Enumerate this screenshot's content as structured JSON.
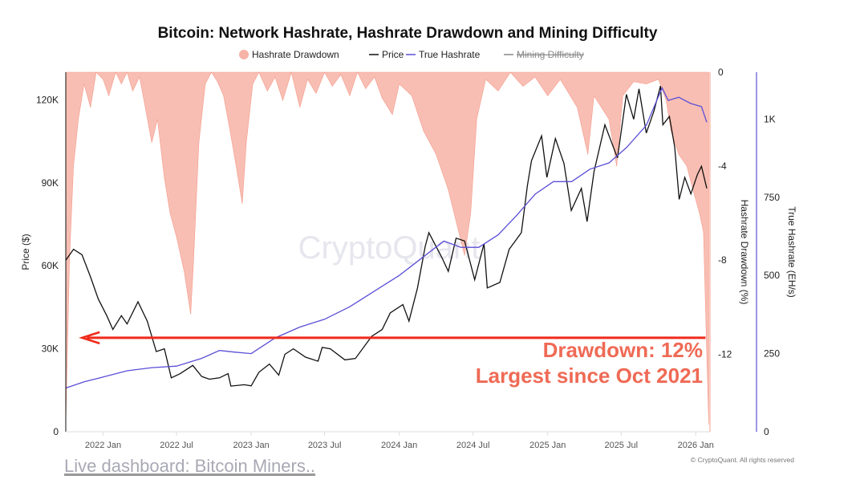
{
  "chart_data": {
    "type": "line",
    "title": "Bitcoin: Network Hashrate, Hashrate Drawdown and Mining Difficulty",
    "legend": {
      "placement": "top",
      "entries": [
        {
          "name": "Hashrate Drawdown",
          "color": "#f7b3a6",
          "marker": "circle"
        },
        {
          "name": "Price",
          "color": "#111111",
          "marker": "line"
        },
        {
          "name": "True Hashrate",
          "color": "#5b4fd6",
          "marker": "line"
        },
        {
          "name": "Mining Difficulty",
          "color": "#888888",
          "marker": "line",
          "hidden": true
        }
      ]
    },
    "x_range": [
      "2021-10-01",
      "2026-02-05"
    ],
    "x_ticks": [
      "2022 Jan",
      "2022 Jul",
      "2023 Jan",
      "2023 Jul",
      "2024 Jan",
      "2024 Jul",
      "2025 Jan",
      "2025 Jul",
      "2026 Jan"
    ],
    "x_tick_dates": [
      "2022-01-01",
      "2022-07-01",
      "2023-01-01",
      "2023-07-01",
      "2024-01-01",
      "2024-07-01",
      "2025-01-01",
      "2025-07-01",
      "2026-01-01"
    ],
    "axes": {
      "price": {
        "label": "Price ($)",
        "range": [
          0,
          130000
        ],
        "ticks": [
          0,
          30000,
          60000,
          90000,
          120000
        ],
        "tick_labels": [
          "0",
          "30K",
          "60K",
          "90K",
          "120K"
        ]
      },
      "drawdown": {
        "label": "Hashrate Drawdown (%)",
        "range": [
          -15.3,
          0
        ],
        "ticks": [
          0,
          -4,
          -8,
          -12
        ],
        "tick_labels": [
          "0",
          "-4",
          "-8",
          "-12"
        ]
      },
      "hashrate": {
        "label": "True Hashrate (EH/s)",
        "range": [
          0,
          1150
        ],
        "ticks": [
          0,
          250,
          500,
          750,
          1000
        ],
        "tick_labels": [
          "0",
          "250",
          "500",
          "750",
          "1K"
        ]
      }
    },
    "grid": false,
    "series": [
      {
        "name": "Price",
        "axis": "price",
        "color": "#111111",
        "points": [
          [
            "2021-10-01",
            62000
          ],
          [
            "2021-10-20",
            66000
          ],
          [
            "2021-11-10",
            64000
          ],
          [
            "2021-12-01",
            56000
          ],
          [
            "2021-12-20",
            48000
          ],
          [
            "2022-01-10",
            42000
          ],
          [
            "2022-01-25",
            37000
          ],
          [
            "2022-02-15",
            42000
          ],
          [
            "2022-03-01",
            39000
          ],
          [
            "2022-03-28",
            47000
          ],
          [
            "2022-04-20",
            40000
          ],
          [
            "2022-05-12",
            29000
          ],
          [
            "2022-06-01",
            30000
          ],
          [
            "2022-06-18",
            19500
          ],
          [
            "2022-07-10",
            21000
          ],
          [
            "2022-08-10",
            24000
          ],
          [
            "2022-09-01",
            20000
          ],
          [
            "2022-09-20",
            19000
          ],
          [
            "2022-10-15",
            19500
          ],
          [
            "2022-11-05",
            21000
          ],
          [
            "2022-11-12",
            16500
          ],
          [
            "2022-12-15",
            17000
          ],
          [
            "2023-01-01",
            16600
          ],
          [
            "2023-01-20",
            21500
          ],
          [
            "2023-02-15",
            24500
          ],
          [
            "2023-03-10",
            20500
          ],
          [
            "2023-03-25",
            28000
          ],
          [
            "2023-04-15",
            30000
          ],
          [
            "2023-05-15",
            27000
          ],
          [
            "2023-06-15",
            25500
          ],
          [
            "2023-06-25",
            30500
          ],
          [
            "2023-07-15",
            30000
          ],
          [
            "2023-08-20",
            26000
          ],
          [
            "2023-09-15",
            26500
          ],
          [
            "2023-10-25",
            34500
          ],
          [
            "2023-11-20",
            37000
          ],
          [
            "2023-12-10",
            43000
          ],
          [
            "2024-01-10",
            46000
          ],
          [
            "2024-01-25",
            40000
          ],
          [
            "2024-02-15",
            52000
          ],
          [
            "2024-03-05",
            67000
          ],
          [
            "2024-03-14",
            72000
          ],
          [
            "2024-04-15",
            63000
          ],
          [
            "2024-05-01",
            58000
          ],
          [
            "2024-05-20",
            70000
          ],
          [
            "2024-06-10",
            69000
          ],
          [
            "2024-07-05",
            55000
          ],
          [
            "2024-07-28",
            68000
          ],
          [
            "2024-08-05",
            52000
          ],
          [
            "2024-09-05",
            54000
          ],
          [
            "2024-09-28",
            66000
          ],
          [
            "2024-10-28",
            72000
          ],
          [
            "2024-11-12",
            89000
          ],
          [
            "2024-11-22",
            98000
          ],
          [
            "2024-12-17",
            107000
          ],
          [
            "2024-12-30",
            92000
          ],
          [
            "2025-01-20",
            106000
          ],
          [
            "2025-02-10",
            97000
          ],
          [
            "2025-02-28",
            80000
          ],
          [
            "2025-03-25",
            88000
          ],
          [
            "2025-04-08",
            76000
          ],
          [
            "2025-04-25",
            94000
          ],
          [
            "2025-05-22",
            111000
          ],
          [
            "2025-06-22",
            99000
          ],
          [
            "2025-07-14",
            122000
          ],
          [
            "2025-08-01",
            113000
          ],
          [
            "2025-08-14",
            124000
          ],
          [
            "2025-09-01",
            108000
          ],
          [
            "2025-09-20",
            116000
          ],
          [
            "2025-10-06",
            125000
          ],
          [
            "2025-10-12",
            111000
          ],
          [
            "2025-10-28",
            114000
          ],
          [
            "2025-11-10",
            103000
          ],
          [
            "2025-11-21",
            84000
          ],
          [
            "2025-12-05",
            92000
          ],
          [
            "2025-12-20",
            86000
          ],
          [
            "2026-01-05",
            93000
          ],
          [
            "2026-01-15",
            96000
          ],
          [
            "2026-01-28",
            88000
          ]
        ]
      },
      {
        "name": "True Hashrate",
        "axis": "hashrate",
        "color": "#5b4fd6",
        "points": [
          [
            "2021-10-01",
            140
          ],
          [
            "2021-11-15",
            160
          ],
          [
            "2022-01-01",
            175
          ],
          [
            "2022-03-01",
            195
          ],
          [
            "2022-05-01",
            205
          ],
          [
            "2022-07-01",
            210
          ],
          [
            "2022-09-01",
            235
          ],
          [
            "2022-10-15",
            260
          ],
          [
            "2022-11-20",
            255
          ],
          [
            "2023-01-01",
            250
          ],
          [
            "2023-03-01",
            300
          ],
          [
            "2023-05-01",
            335
          ],
          [
            "2023-07-01",
            360
          ],
          [
            "2023-09-01",
            400
          ],
          [
            "2023-11-01",
            450
          ],
          [
            "2024-01-01",
            500
          ],
          [
            "2024-03-01",
            560
          ],
          [
            "2024-04-20",
            610
          ],
          [
            "2024-06-01",
            590
          ],
          [
            "2024-07-15",
            590
          ],
          [
            "2024-09-01",
            630
          ],
          [
            "2024-10-15",
            690
          ],
          [
            "2024-12-01",
            760
          ],
          [
            "2025-01-15",
            800
          ],
          [
            "2025-03-01",
            800
          ],
          [
            "2025-04-15",
            840
          ],
          [
            "2025-06-01",
            860
          ],
          [
            "2025-07-15",
            910
          ],
          [
            "2025-09-01",
            980
          ],
          [
            "2025-10-10",
            1100
          ],
          [
            "2025-10-25",
            1060
          ],
          [
            "2025-11-20",
            1070
          ],
          [
            "2025-12-20",
            1050
          ],
          [
            "2026-01-15",
            1040
          ],
          [
            "2026-01-28",
            990
          ]
        ]
      },
      {
        "name": "Hashrate Drawdown",
        "axis": "drawdown",
        "color": "#f7b3a6",
        "type": "area",
        "points": [
          [
            "2021-10-01",
            -15
          ],
          [
            "2021-10-10",
            -8
          ],
          [
            "2021-10-20",
            -4
          ],
          [
            "2021-11-01",
            -2
          ],
          [
            "2021-11-15",
            -0.5
          ],
          [
            "2021-12-01",
            -1.5
          ],
          [
            "2021-12-15",
            0
          ],
          [
            "2022-01-01",
            -0.3
          ],
          [
            "2022-01-15",
            -1
          ],
          [
            "2022-02-01",
            0
          ],
          [
            "2022-02-15",
            -0.5
          ],
          [
            "2022-03-01",
            0
          ],
          [
            "2022-03-15",
            -0.8
          ],
          [
            "2022-04-01",
            -0.2
          ],
          [
            "2022-04-15",
            -1.5
          ],
          [
            "2022-05-01",
            -3
          ],
          [
            "2022-05-15",
            -2
          ],
          [
            "2022-06-01",
            -4.5
          ],
          [
            "2022-06-15",
            -6
          ],
          [
            "2022-07-01",
            -7
          ],
          [
            "2022-07-20",
            -8.5
          ],
          [
            "2022-08-05",
            -10.3
          ],
          [
            "2022-08-12",
            -8
          ],
          [
            "2022-08-25",
            -3
          ],
          [
            "2022-09-10",
            -0.5
          ],
          [
            "2022-09-25",
            0
          ],
          [
            "2022-10-10",
            -0.4
          ],
          [
            "2022-10-25",
            -1
          ],
          [
            "2022-11-10",
            -2.5
          ],
          [
            "2022-11-25",
            -4
          ],
          [
            "2022-12-10",
            -5.6
          ],
          [
            "2022-12-20",
            -3
          ],
          [
            "2023-01-05",
            -0.5
          ],
          [
            "2023-01-20",
            0
          ],
          [
            "2023-02-10",
            -0.8
          ],
          [
            "2023-03-01",
            -0.2
          ],
          [
            "2023-03-20",
            -1.2
          ],
          [
            "2023-04-10",
            0
          ],
          [
            "2023-05-01",
            -1.5
          ],
          [
            "2023-05-20",
            -0.3
          ],
          [
            "2023-06-10",
            -0.9
          ],
          [
            "2023-07-01",
            0
          ],
          [
            "2023-07-20",
            -0.6
          ],
          [
            "2023-08-10",
            -0.1
          ],
          [
            "2023-09-01",
            -1
          ],
          [
            "2023-09-20",
            0
          ],
          [
            "2023-10-10",
            -0.7
          ],
          [
            "2023-11-01",
            -0.2
          ],
          [
            "2023-11-20",
            -1.1
          ],
          [
            "2023-12-15",
            -1.8
          ],
          [
            "2024-01-01",
            -0.5
          ],
          [
            "2024-02-01",
            -1
          ],
          [
            "2024-03-01",
            -2.5
          ],
          [
            "2024-04-01",
            -3.5
          ],
          [
            "2024-05-01",
            -5
          ],
          [
            "2024-06-10",
            -7.8
          ],
          [
            "2024-06-25",
            -6
          ],
          [
            "2024-07-10",
            -2
          ],
          [
            "2024-08-01",
            -0.3
          ],
          [
            "2024-09-01",
            -0.8
          ],
          [
            "2024-10-01",
            0
          ],
          [
            "2024-11-01",
            -0.6
          ],
          [
            "2024-12-01",
            -0.2
          ],
          [
            "2025-01-01",
            -1
          ],
          [
            "2025-02-01",
            -0.3
          ],
          [
            "2025-03-15",
            -1.5
          ],
          [
            "2025-04-10",
            -3.5
          ],
          [
            "2025-04-25",
            -1
          ],
          [
            "2025-06-01",
            -2
          ],
          [
            "2025-06-20",
            -4
          ],
          [
            "2025-07-05",
            -1
          ],
          [
            "2025-08-01",
            -0.4
          ],
          [
            "2025-09-01",
            -0.5
          ],
          [
            "2025-10-01",
            -0.3
          ],
          [
            "2025-10-20",
            -1.2
          ],
          [
            "2025-11-01",
            -2.5
          ],
          [
            "2025-11-20",
            -3.5
          ],
          [
            "2025-12-10",
            -4
          ],
          [
            "2025-12-25",
            -5
          ],
          [
            "2026-01-10",
            -6
          ],
          [
            "2026-01-20",
            -6.8
          ],
          [
            "2026-01-28",
            -12
          ],
          [
            "2026-02-02",
            -15
          ]
        ]
      }
    ],
    "annotations": {
      "arrow": {
        "from_date": "2026-01-25",
        "to_date": "2021-11-10",
        "drawdown_level": -11.3,
        "color": "#ef2a1a"
      },
      "line1": "Drawdown: 12%",
      "line2": "Largest since Oct 2021",
      "text_color": "#ef6a55"
    },
    "watermark": "CryptoQuant",
    "copyright": "© CryptoQuant. All rights reserved"
  },
  "footer": {
    "link_text": "Live dashboard: Bitcoin Miners.."
  }
}
